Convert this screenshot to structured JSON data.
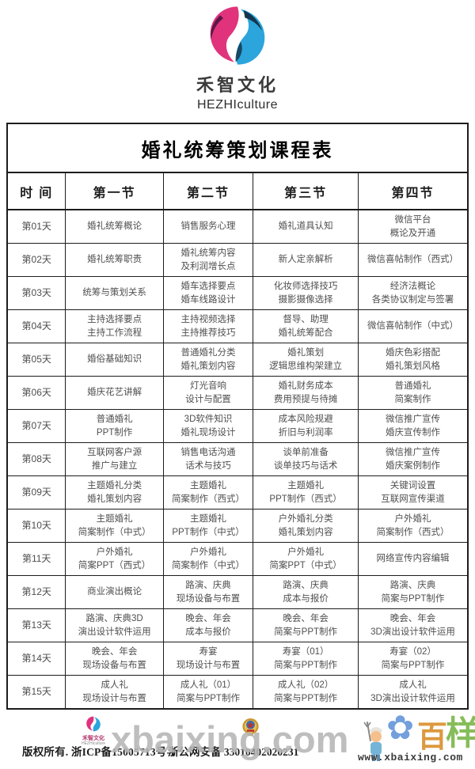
{
  "header": {
    "brand_name": "禾智文化",
    "brand_name_en": "HEZHIculture"
  },
  "table": {
    "title": "婚礼统筹策划课程表",
    "columns": [
      "时  间",
      "第一节",
      "第二节",
      "第三节",
      "第四节"
    ],
    "rows": [
      {
        "day": "第01天",
        "cells": [
          [
            "婚礼统筹概论"
          ],
          [
            "销售服务心理"
          ],
          [
            "婚礼道具认知"
          ],
          [
            "微信平台",
            "概论及开通"
          ]
        ]
      },
      {
        "day": "第02天",
        "cells": [
          [
            "婚礼统筹职责"
          ],
          [
            "婚礼统筹内容",
            "及利润增长点"
          ],
          [
            "新人定亲解析"
          ],
          [
            "微信喜帖制作（西式）"
          ]
        ]
      },
      {
        "day": "第03天",
        "cells": [
          [
            "统筹与策划关系"
          ],
          [
            "婚车选择要点",
            "婚车线路设计"
          ],
          [
            "化妆师选择技巧",
            "摄影摄像选择"
          ],
          [
            "经济法概论",
            "各类协议制定与签署"
          ]
        ]
      },
      {
        "day": "第04天",
        "cells": [
          [
            "主持选择要点",
            "主持工作流程"
          ],
          [
            "主持视频选择",
            "主持推荐技巧"
          ],
          [
            "督导、助理",
            "婚礼统筹配合"
          ],
          [
            "微信喜帖制作（中式）"
          ]
        ]
      },
      {
        "day": "第05天",
        "cells": [
          [
            "婚俗基础知识"
          ],
          [
            "普通婚礼分类",
            "婚礼策划内容"
          ],
          [
            "婚礼策划",
            "逻辑思维构架建立"
          ],
          [
            "婚庆色彩搭配",
            "婚礼策划风格"
          ]
        ]
      },
      {
        "day": "第06天",
        "cells": [
          [
            "婚庆花艺讲解"
          ],
          [
            "灯光音响",
            "设计与配置"
          ],
          [
            "婚礼财务成本",
            "费用预提与待摊"
          ],
          [
            "普通婚礼",
            "简案制作"
          ]
        ]
      },
      {
        "day": "第07天",
        "cells": [
          [
            "普通婚礼",
            "PPT制作"
          ],
          [
            "3D软件知识",
            "婚礼现场设计"
          ],
          [
            "成本风险规避",
            "折旧与利润率"
          ],
          [
            "微信推广宣传",
            "婚庆宣传制作"
          ]
        ]
      },
      {
        "day": "第08天",
        "cells": [
          [
            "互联网客户源",
            "推广与建立"
          ],
          [
            "销售电话沟通",
            "话术与技巧"
          ],
          [
            "谈单前准备",
            "谈单技巧与话术"
          ],
          [
            "微信推广宣传",
            "婚庆案例制作"
          ]
        ]
      },
      {
        "day": "第09天",
        "cells": [
          [
            "主题婚礼分类",
            "婚礼策划内容"
          ],
          [
            "主题婚礼",
            "简案制作（西式）"
          ],
          [
            "主题婚礼",
            "PPT制作（西式）"
          ],
          [
            "关键词设置",
            "互联网宣传渠道"
          ]
        ]
      },
      {
        "day": "第10天",
        "cells": [
          [
            "主题婚礼",
            "简案制作（中式）"
          ],
          [
            "主题婚礼",
            "PPT制作（中式）"
          ],
          [
            "户外婚礼分类",
            "婚礼策划内容"
          ],
          [
            "户外婚礼",
            "简案制作（西式）"
          ]
        ]
      },
      {
        "day": "第11天",
        "cells": [
          [
            "户外婚礼",
            "简案PPT（西式）"
          ],
          [
            "户外婚礼",
            "简案制作（中式）"
          ],
          [
            "户外婚礼",
            "简案PPT（中式）"
          ],
          [
            "网络宣传内容编辑"
          ]
        ]
      },
      {
        "day": "第12天",
        "cells": [
          [
            "商业演出概论"
          ],
          [
            "路演、庆典",
            "现场设备与布置"
          ],
          [
            "路演、庆典",
            "成本与报价"
          ],
          [
            "路演、庆典",
            "简案与PPT制作"
          ]
        ]
      },
      {
        "day": "第13天",
        "cells": [
          [
            "路演、庆典3D",
            "演出设计软件运用"
          ],
          [
            "晚会、年会",
            "成本与报价"
          ],
          [
            "晚会、年会",
            "简案与PPT制作"
          ],
          [
            "晚会、年会",
            "3D演出设计软件运用"
          ]
        ]
      },
      {
        "day": "第14天",
        "cells": [
          [
            "晚会、年会",
            "现场设备与布置"
          ],
          [
            "寿宴",
            "现场设计与布置"
          ],
          [
            "寿宴（01）",
            "简案与PPT制作"
          ],
          [
            "寿宴（02）",
            "简案与PPT制作"
          ]
        ]
      },
      {
        "day": "第15天",
        "cells": [
          [
            "成人礼",
            "现场设计与布置"
          ],
          [
            "成人礼（01）",
            "简案与PPT制作"
          ],
          [
            "成人礼（02）",
            "简案与PPT制作"
          ],
          [
            "成人礼",
            "3D演出设计软件运用"
          ]
        ]
      }
    ]
  },
  "footer": {
    "brand_name": "禾智文化",
    "brand_name_en": "HEZHIculture",
    "copyright": "版权所有. 浙ICP备15005713号-1",
    "security_label": "浙公网安备 33010402020231"
  },
  "watermark": {
    "text": "xbaixing.com",
    "url": "www.xbaixing.com",
    "glyph_bai": "百",
    "glyph_yang": "样",
    "flower_glyph": "✿"
  },
  "colors": {
    "brand_pink": "#e0337c",
    "brand_dark_purple": "#5a1746",
    "brand_blue": "#2ba5dc",
    "brand_dark_navy": "#14374f",
    "table_border": "#1c1c1c",
    "cell_text": "#4f4f4f",
    "badge_gold": "#c9972f",
    "badge_red": "#c03027"
  }
}
